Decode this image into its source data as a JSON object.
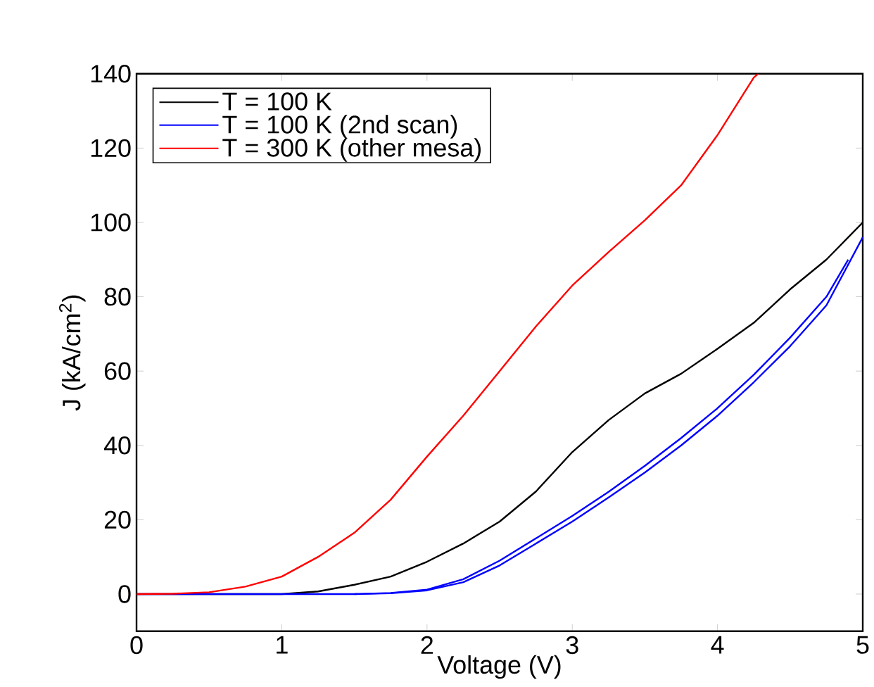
{
  "chart_data": {
    "type": "line",
    "xlabel": "Voltage (V)",
    "ylabel": "J (kA/cm$^{2}$)",
    "xlim": [
      0,
      5
    ],
    "ylim": [
      -10,
      140
    ],
    "xticks": [
      0,
      1,
      2,
      3,
      4,
      5
    ],
    "yticks": [
      0,
      20,
      40,
      60,
      80,
      100,
      120,
      140
    ],
    "legend": "top left",
    "grid": false,
    "marker": "none",
    "line_style": "solid",
    "series": [
      {
        "name": "T = 100 K",
        "color": "#000000",
        "x": [
          0,
          0.5,
          1,
          1.25,
          1.5,
          1.75,
          2,
          2.25,
          2.5,
          2.75,
          3,
          3.25,
          3.5,
          3.75,
          4,
          4.25,
          4.5,
          4.75,
          5
        ],
        "values": [
          0,
          0,
          0,
          0.7,
          2.5,
          4.7,
          8.7,
          13.6,
          19.5,
          27.6,
          38.2,
          46.8,
          54,
          59.3,
          66,
          73,
          82,
          90,
          100
        ]
      },
      {
        "name": "T = 100 K (2nd scan)",
        "color": "#0000ff",
        "x": [
          0,
          0.5,
          1,
          1.5,
          1.75,
          2,
          2.25,
          2.5,
          2.75,
          3,
          3.25,
          3.5,
          3.75,
          4,
          4.25,
          4.5,
          4.75,
          5
        ],
        "values": [
          0,
          0,
          0,
          0,
          0.2,
          1,
          3.2,
          7.7,
          13.6,
          19.5,
          26,
          32.7,
          40,
          48,
          57,
          66.7,
          77.7,
          96
        ]
      },
      {
        "color": "#0000ff",
        "x": [
          1.5,
          1.75,
          2,
          2.25,
          2.5,
          2.75,
          3,
          3.25,
          3.5,
          3.75,
          4,
          4.25,
          4.5,
          4.75,
          4.9
        ],
        "values": [
          0,
          0.3,
          1.2,
          4,
          9,
          15,
          21,
          27.5,
          34.5,
          42,
          50,
          59,
          69,
          80,
          90
        ]
      },
      {
        "name": "T = 300 K (other mesa)",
        "color": "#ff0000",
        "x": [
          0,
          0.25,
          0.5,
          0.75,
          1,
          1.25,
          1.5,
          1.75,
          2,
          2.25,
          2.5,
          2.75,
          3,
          3.25,
          3.5,
          3.75,
          4,
          4.25,
          4.28
        ],
        "values": [
          0,
          0.1,
          0.5,
          2,
          4.7,
          10,
          16.5,
          25.4,
          37,
          48,
          60,
          72,
          83,
          92,
          100.6,
          110,
          123.5,
          139,
          140
        ]
      }
    ]
  }
}
